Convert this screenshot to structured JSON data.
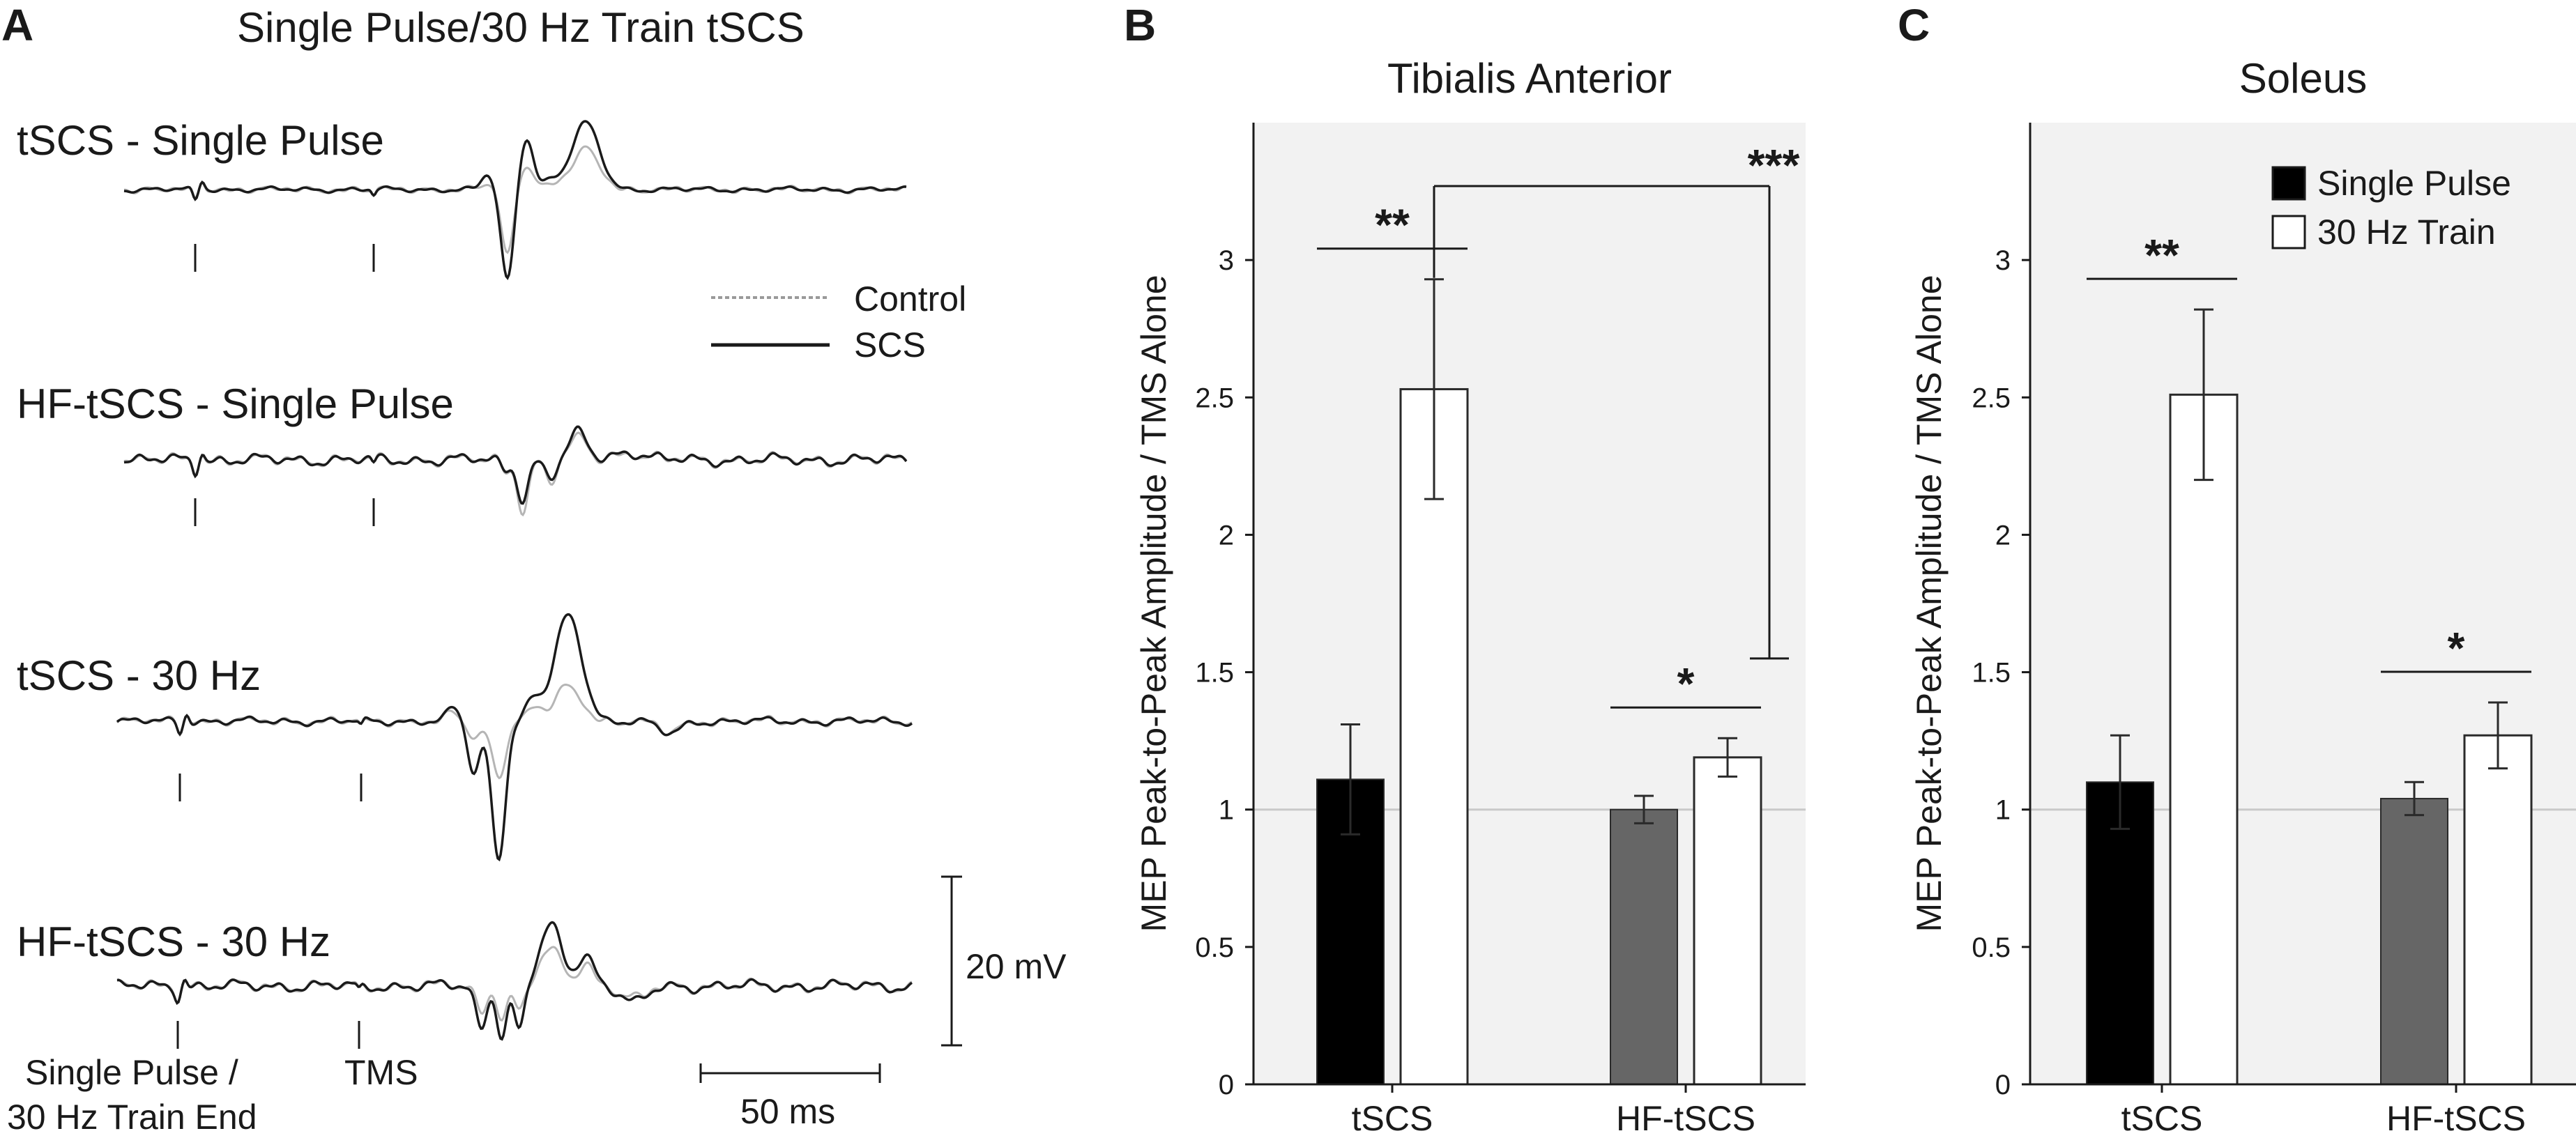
{
  "panels": {
    "A": {
      "letter": "A",
      "title": "Single Pulse/30 Hz Train tSCS",
      "traces": [
        {
          "label": "tSCS - Single Pulse"
        },
        {
          "label": "HF-tSCS - Single Pulse"
        },
        {
          "label": "tSCS - 30 Hz"
        },
        {
          "label": "HF-tSCS - 30 Hz"
        }
      ],
      "legend": {
        "control": "Control",
        "scs": "SCS"
      },
      "markers": {
        "stim_end_line1": "Single Pulse /",
        "stim_end_line2": "30 Hz Train End",
        "tms": "TMS"
      },
      "scalebars": {
        "amplitude": "20 mV",
        "time": "50 ms"
      }
    },
    "B": {
      "letter": "B"
    },
    "C": {
      "letter": "C"
    }
  },
  "chart_data": [
    {
      "type": "bar",
      "panel": "B",
      "title": "Tibialis Anterior",
      "ylabel": "MEP Peak-to-Peak Amplitude / TMS Alone",
      "xlabel": "",
      "ylim": [
        0,
        3.5
      ],
      "yticks": [
        0,
        0.5,
        1,
        1.5,
        2,
        2.5,
        3
      ],
      "ytick_labels": [
        "0",
        "0.5",
        "1",
        "1.5",
        "2",
        "2.5",
        "3"
      ],
      "reference_line": 1,
      "categories": [
        "tSCS",
        "HF-tSCS"
      ],
      "series": [
        {
          "name": "Single Pulse",
          "values": [
            1.11,
            1.0
          ],
          "errors": [
            0.2,
            0.05
          ]
        },
        {
          "name": "30 Hz Train",
          "values": [
            2.53,
            1.19
          ],
          "errors": [
            0.4,
            0.07
          ]
        }
      ],
      "significance": [
        {
          "label": "**",
          "between": "tSCS Single Pulse vs tSCS 30 Hz Train"
        },
        {
          "label": "*",
          "between": "HF-tSCS Single Pulse vs HF-tSCS 30 Hz Train"
        },
        {
          "label": "***",
          "between": "tSCS 30 Hz Train vs HF-tSCS 30 Hz Train"
        }
      ]
    },
    {
      "type": "bar",
      "panel": "C",
      "title": "Soleus",
      "ylabel": "MEP Peak-to-Peak Amplitude / TMS Alone",
      "xlabel": "",
      "ylim": [
        0,
        3.5
      ],
      "yticks": [
        0,
        0.5,
        1,
        1.5,
        2,
        2.5,
        3
      ],
      "ytick_labels": [
        "0",
        "0.5",
        "1",
        "1.5",
        "2",
        "2.5",
        "3"
      ],
      "reference_line": 1,
      "categories": [
        "tSCS",
        "HF-tSCS"
      ],
      "legend": [
        "Single Pulse",
        "30 Hz Train"
      ],
      "legend_position": "top-right",
      "series": [
        {
          "name": "Single Pulse",
          "values": [
            1.1,
            1.04
          ],
          "errors": [
            0.17,
            0.06
          ]
        },
        {
          "name": "30 Hz Train",
          "values": [
            2.51,
            1.27
          ],
          "errors": [
            0.31,
            0.12
          ]
        }
      ],
      "significance": [
        {
          "label": "**",
          "between": "tSCS Single Pulse vs tSCS 30 Hz Train"
        },
        {
          "label": "*",
          "between": "HF-tSCS Single Pulse vs HF-tSCS 30 Hz Train"
        }
      ]
    }
  ],
  "colors": {
    "plot_background": "#f2f2f2",
    "tscs_single_pulse": "#000000",
    "hf_single_pulse": "#666666",
    "train": "#ffffff",
    "control_trace": "#b5b5b5",
    "scs_trace": "#1a1a1a",
    "reference_line": "#c9c9c9"
  }
}
